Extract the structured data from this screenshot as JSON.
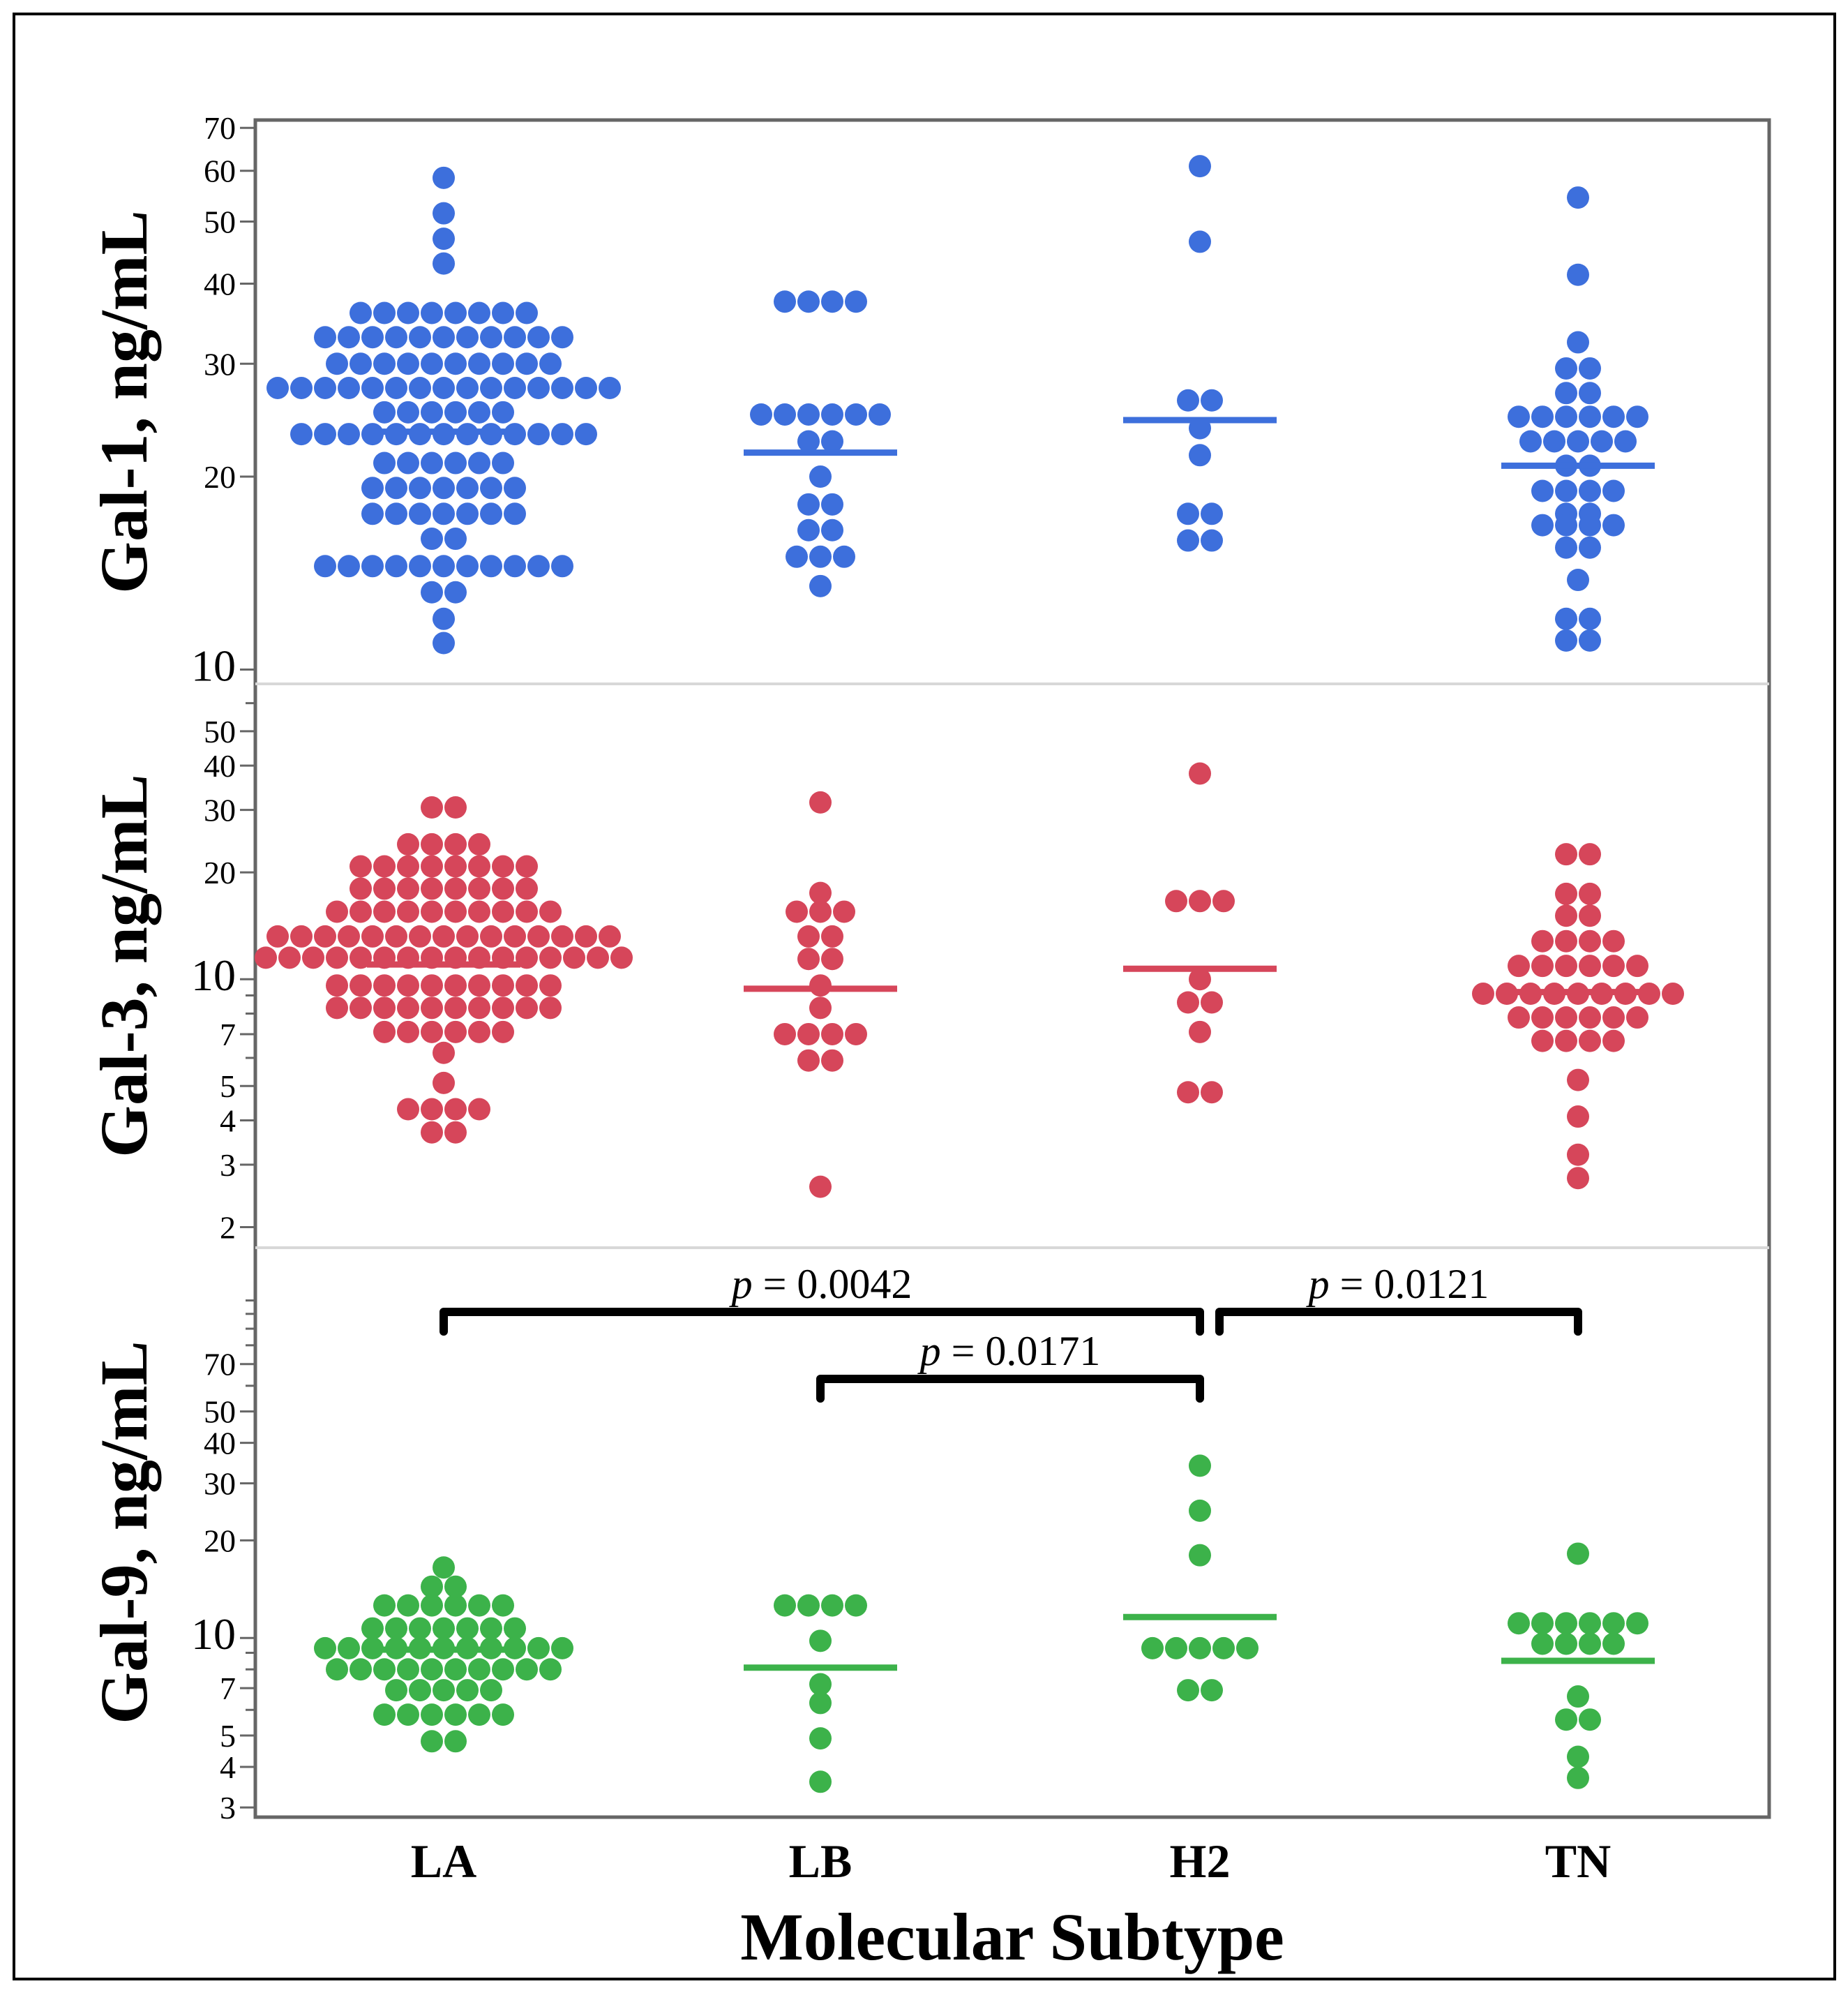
{
  "chart_data": {
    "type": "scatter",
    "subtype": "dot-plot",
    "x_title": "Molecular Subtype",
    "categories": [
      "LA",
      "LB",
      "H2",
      "TN"
    ],
    "y_scale": "log",
    "panels": [
      {
        "id": "gal1",
        "ylabel": "Gal-1, ng/mL",
        "color": "#3d6fdc",
        "ylim": [
          9.5,
          72
        ],
        "ticks": [
          10,
          20,
          30,
          40,
          50,
          60,
          70
        ],
        "tick_labels": [
          "10",
          "20",
          "30",
          "40",
          "50",
          "60",
          "70"
        ],
        "minor_ticks": [],
        "series": [
          {
            "category": "LA",
            "median": 23.5,
            "rows": [
              {
                "y": 58.5,
                "n": 1
              },
              {
                "y": 51.5,
                "n": 1
              },
              {
                "y": 47,
                "n": 1
              },
              {
                "y": 43,
                "n": 1
              },
              {
                "y": 36,
                "n": 8
              },
              {
                "y": 33,
                "n": 11
              },
              {
                "y": 30,
                "n": 10
              },
              {
                "y": 27.5,
                "n": 15
              },
              {
                "y": 25.2,
                "n": 6
              },
              {
                "y": 23.3,
                "n": 13
              },
              {
                "y": 21,
                "n": 6
              },
              {
                "y": 19.2,
                "n": 7
              },
              {
                "y": 17.5,
                "n": 7
              },
              {
                "y": 16,
                "n": 2
              },
              {
                "y": 14.5,
                "n": 11
              },
              {
                "y": 13.2,
                "n": 2
              },
              {
                "y": 12,
                "n": 1
              },
              {
                "y": 11,
                "n": 1
              }
            ]
          },
          {
            "category": "LB",
            "median": 21.8,
            "rows": [
              {
                "y": 37.5,
                "n": 4
              },
              {
                "y": 25,
                "n": 6
              },
              {
                "y": 22.7,
                "n": 2
              },
              {
                "y": 20,
                "n": 1
              },
              {
                "y": 18.1,
                "n": 2
              },
              {
                "y": 16.5,
                "n": 2
              },
              {
                "y": 15,
                "n": 3
              },
              {
                "y": 13.5,
                "n": 1
              }
            ]
          },
          {
            "category": "H2",
            "median": 24.5,
            "rows": [
              {
                "y": 61,
                "n": 1
              },
              {
                "y": 46.5,
                "n": 1
              },
              {
                "y": 26.3,
                "n": 2
              },
              {
                "y": 23.8,
                "n": 1
              },
              {
                "y": 21.6,
                "n": 1
              },
              {
                "y": 17.5,
                "n": 2
              },
              {
                "y": 15.9,
                "n": 2
              }
            ]
          },
          {
            "category": "TN",
            "median": 20.8,
            "rows": [
              {
                "y": 54.5,
                "n": 1
              },
              {
                "y": 41.3,
                "n": 1
              },
              {
                "y": 32.4,
                "n": 1
              },
              {
                "y": 29.5,
                "n": 2
              },
              {
                "y": 27,
                "n": 2
              },
              {
                "y": 24.8,
                "n": 6
              },
              {
                "y": 22.7,
                "n": 5
              },
              {
                "y": 20.8,
                "n": 2
              },
              {
                "y": 19,
                "n": 4
              },
              {
                "y": 17.5,
                "n": 2
              },
              {
                "y": 16.8,
                "n": 4
              },
              {
                "y": 15.5,
                "n": 2
              },
              {
                "y": 13.8,
                "n": 1
              },
              {
                "y": 12,
                "n": 2
              },
              {
                "y": 11.1,
                "n": 2
              }
            ]
          }
        ]
      },
      {
        "id": "gal3",
        "ylabel": "Gal-3, ng/mL",
        "color": "#d6465a",
        "ylim": [
          1.75,
          68
        ],
        "ticks": [
          2,
          3,
          4,
          5,
          7,
          10,
          20,
          30,
          40,
          50
        ],
        "tick_labels": [
          "2",
          "3",
          "4",
          "5",
          "7",
          "10",
          "20",
          "30",
          "40",
          "50"
        ],
        "minor_ticks": [
          6,
          8,
          9,
          60
        ],
        "series": [
          {
            "category": "LA",
            "median": 11,
            "rows": [
              {
                "y": 30.5,
                "n": 2
              },
              {
                "y": 24,
                "n": 4
              },
              {
                "y": 20.8,
                "n": 8
              },
              {
                "y": 18,
                "n": 8
              },
              {
                "y": 15.5,
                "n": 10
              },
              {
                "y": 13.2,
                "n": 15
              },
              {
                "y": 11.5,
                "n": 16
              },
              {
                "y": 9.6,
                "n": 10
              },
              {
                "y": 8.3,
                "n": 10
              },
              {
                "y": 7.1,
                "n": 6
              },
              {
                "y": 6.2,
                "n": 1
              },
              {
                "y": 5.1,
                "n": 1
              },
              {
                "y": 4.3,
                "n": 4
              },
              {
                "y": 3.7,
                "n": 2
              }
            ]
          },
          {
            "category": "LB",
            "median": 9.4,
            "rows": [
              {
                "y": 31.5,
                "n": 1
              },
              {
                "y": 17.5,
                "n": 1
              },
              {
                "y": 15.5,
                "n": 3
              },
              {
                "y": 13.2,
                "n": 2
              },
              {
                "y": 11.4,
                "n": 2
              },
              {
                "y": 9.6,
                "n": 1
              },
              {
                "y": 8.3,
                "n": 1
              },
              {
                "y": 7,
                "n": 4
              },
              {
                "y": 5.9,
                "n": 2
              },
              {
                "y": 2.6,
                "n": 1
              }
            ]
          },
          {
            "category": "H2",
            "median": 10.7,
            "rows": [
              {
                "y": 38,
                "n": 1
              },
              {
                "y": 16.6,
                "n": 3
              },
              {
                "y": 10,
                "n": 1
              },
              {
                "y": 8.6,
                "n": 2
              },
              {
                "y": 7.1,
                "n": 1
              },
              {
                "y": 4.8,
                "n": 2
              }
            ]
          },
          {
            "category": "TN",
            "median": 9.2,
            "rows": [
              {
                "y": 22.5,
                "n": 2
              },
              {
                "y": 17.4,
                "n": 2
              },
              {
                "y": 15.1,
                "n": 2
              },
              {
                "y": 12.8,
                "n": 4
              },
              {
                "y": 10.9,
                "n": 6
              },
              {
                "y": 9.1,
                "n": 9
              },
              {
                "y": 7.8,
                "n": 6
              },
              {
                "y": 6.7,
                "n": 4
              },
              {
                "y": 5.2,
                "n": 1
              },
              {
                "y": 4.1,
                "n": 1
              },
              {
                "y": 3.2,
                "n": 1
              },
              {
                "y": 2.75,
                "n": 1
              }
            ]
          }
        ]
      },
      {
        "id": "gal9",
        "ylabel": "Gal-9, ng/mL",
        "color": "#3cb24a",
        "ylim": [
          2.8,
          160
        ],
        "ticks": [
          3,
          4,
          5,
          7,
          10,
          20,
          30,
          40,
          50,
          70
        ],
        "tick_labels": [
          "3",
          "4",
          "5",
          "7",
          "10",
          "20",
          "30",
          "40",
          "50",
          "70"
        ],
        "minor_ticks": [
          6,
          8,
          9,
          60,
          80,
          90,
          100,
          110
        ],
        "series": [
          {
            "category": "LA",
            "median": 9.2,
            "rows": [
              {
                "y": 16.5,
                "n": 1
              },
              {
                "y": 14.4,
                "n": 2
              },
              {
                "y": 12.6,
                "n": 6
              },
              {
                "y": 10.7,
                "n": 7
              },
              {
                "y": 9.3,
                "n": 11
              },
              {
                "y": 8,
                "n": 10
              },
              {
                "y": 6.9,
                "n": 5
              },
              {
                "y": 5.8,
                "n": 6
              },
              {
                "y": 4.8,
                "n": 2
              }
            ]
          },
          {
            "category": "LB",
            "median": 8.1,
            "rows": [
              {
                "y": 12.6,
                "n": 4
              },
              {
                "y": 9.8,
                "n": 1
              },
              {
                "y": 7.2,
                "n": 1
              },
              {
                "y": 6.3,
                "n": 1
              },
              {
                "y": 4.9,
                "n": 1
              },
              {
                "y": 3.6,
                "n": 1
              }
            ]
          },
          {
            "category": "H2",
            "median": 11.6,
            "rows": [
              {
                "y": 34,
                "n": 1
              },
              {
                "y": 24.7,
                "n": 1
              },
              {
                "y": 18,
                "n": 1
              },
              {
                "y": 9.3,
                "n": 5
              },
              {
                "y": 6.9,
                "n": 2
              }
            ]
          },
          {
            "category": "TN",
            "median": 8.5,
            "rows": [
              {
                "y": 18.2,
                "n": 1
              },
              {
                "y": 11.1,
                "n": 6
              },
              {
                "y": 9.6,
                "n": 4
              },
              {
                "y": 6.6,
                "n": 1
              },
              {
                "y": 5.6,
                "n": 2
              },
              {
                "y": 4.3,
                "n": 1
              },
              {
                "y": 3.7,
                "n": 1
              }
            ]
          }
        ],
        "comparisons": [
          {
            "from": "LA",
            "to": "H2",
            "label_p": "p",
            "label_rest": " = 0.0042",
            "level": 1
          },
          {
            "from": "LB",
            "to": "H2",
            "label_p": "p",
            "label_rest": " = 0.0171",
            "level": 0
          },
          {
            "from": "H2",
            "to": "TN",
            "label_p": "p",
            "label_rest": " = 0.0121",
            "level": 1
          }
        ]
      }
    ]
  }
}
